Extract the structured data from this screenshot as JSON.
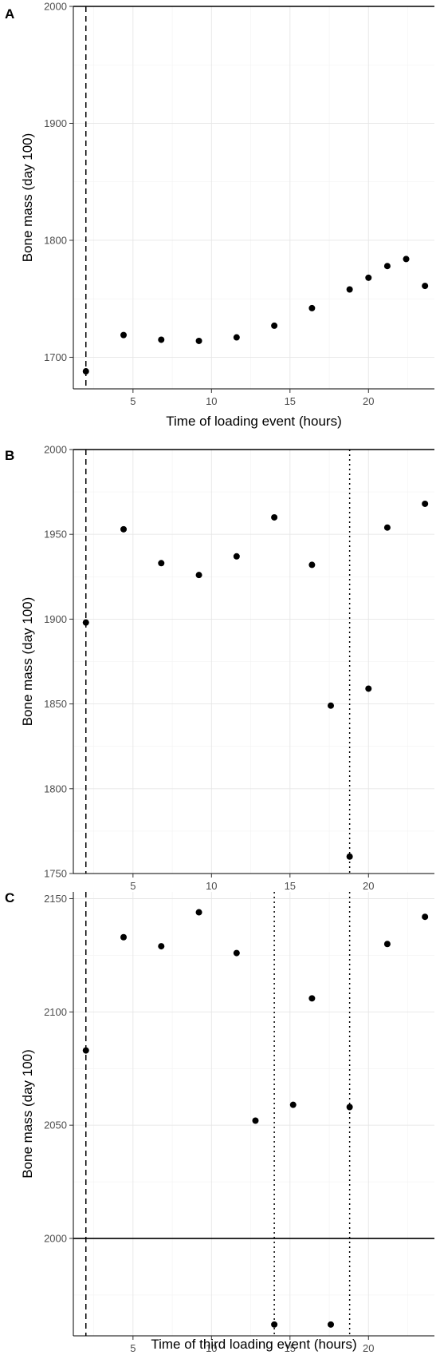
{
  "chart_data": [
    {
      "type": "scatter",
      "panel_label": "A",
      "xlabel": "Time of loading event (hours)",
      "ylabel": "Bone mass (day 100)",
      "xlim": [
        1.2,
        24.2
      ],
      "ylim": [
        1673,
        2000
      ],
      "xticks": [
        "5",
        "10",
        "15",
        "20"
      ],
      "yticks": [
        "1700",
        "1800",
        "1900",
        "2000"
      ],
      "grid": true,
      "points": [
        {
          "x": 2.0,
          "y": 1688
        },
        {
          "x": 4.4,
          "y": 1719
        },
        {
          "x": 6.8,
          "y": 1715
        },
        {
          "x": 9.2,
          "y": 1714
        },
        {
          "x": 11.6,
          "y": 1717
        },
        {
          "x": 14.0,
          "y": 1727
        },
        {
          "x": 16.4,
          "y": 1742
        },
        {
          "x": 18.8,
          "y": 1758
        },
        {
          "x": 20.0,
          "y": 1768
        },
        {
          "x": 21.2,
          "y": 1778
        },
        {
          "x": 22.4,
          "y": 1784
        },
        {
          "x": 23.6,
          "y": 1761
        }
      ],
      "hlines": [
        {
          "y": 2000,
          "style": "solid"
        }
      ],
      "vlines": [
        {
          "x": 2.0,
          "style": "dashed"
        }
      ]
    },
    {
      "type": "scatter",
      "panel_label": "B",
      "xlabel": "Time of second loading event (hours)",
      "ylabel": "Bone mass (day 100)",
      "xlim": [
        1.2,
        24.2
      ],
      "ylim": [
        1750,
        2000
      ],
      "xticks": [
        "5",
        "10",
        "15",
        "20"
      ],
      "yticks": [
        "1750",
        "1800",
        "1850",
        "1900",
        "1950",
        "2000"
      ],
      "grid": true,
      "points": [
        {
          "x": 2.0,
          "y": 1898
        },
        {
          "x": 4.4,
          "y": 1953
        },
        {
          "x": 6.8,
          "y": 1933
        },
        {
          "x": 9.2,
          "y": 1926
        },
        {
          "x": 11.6,
          "y": 1937
        },
        {
          "x": 14.0,
          "y": 1960
        },
        {
          "x": 16.4,
          "y": 1932
        },
        {
          "x": 17.6,
          "y": 1849
        },
        {
          "x": 18.8,
          "y": 1760
        },
        {
          "x": 20.0,
          "y": 1859
        },
        {
          "x": 21.2,
          "y": 1954
        },
        {
          "x": 23.6,
          "y": 1968
        }
      ],
      "hlines": [
        {
          "y": 2000,
          "style": "solid"
        }
      ],
      "vlines": [
        {
          "x": 2.0,
          "style": "dashed"
        },
        {
          "x": 18.8,
          "style": "dotted"
        }
      ]
    },
    {
      "type": "scatter",
      "panel_label": "C",
      "xlabel": "Time of third loading event (hours)",
      "ylabel": "Bone mass (day 100)",
      "xlim": [
        1.2,
        24.2
      ],
      "ylim": [
        1957,
        2153
      ],
      "xticks": [
        "5",
        "10",
        "15",
        "20"
      ],
      "yticks": [
        "2000",
        "2050",
        "2100",
        "2150"
      ],
      "grid": true,
      "points": [
        {
          "x": 2.0,
          "y": 2083
        },
        {
          "x": 4.4,
          "y": 2133
        },
        {
          "x": 6.8,
          "y": 2129
        },
        {
          "x": 9.2,
          "y": 2144
        },
        {
          "x": 11.6,
          "y": 2126
        },
        {
          "x": 12.8,
          "y": 2052
        },
        {
          "x": 14.0,
          "y": 1962
        },
        {
          "x": 15.2,
          "y": 2059
        },
        {
          "x": 16.4,
          "y": 2106
        },
        {
          "x": 17.6,
          "y": 1962
        },
        {
          "x": 18.8,
          "y": 2058
        },
        {
          "x": 21.2,
          "y": 2130
        },
        {
          "x": 23.6,
          "y": 2142
        }
      ],
      "hlines": [
        {
          "y": 2000,
          "style": "solid"
        }
      ],
      "vlines": [
        {
          "x": 2.0,
          "style": "dashed"
        },
        {
          "x": 14.0,
          "style": "dotted"
        },
        {
          "x": 18.8,
          "style": "dotted"
        }
      ]
    }
  ]
}
